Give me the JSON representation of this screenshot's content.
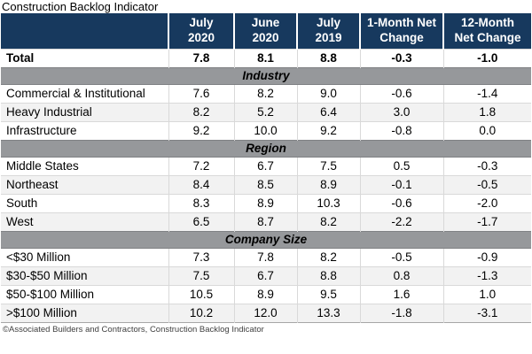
{
  "title": "Construction Backlog Indicator",
  "footer": "©Associated Builders and Contractors, Construction Backlog Indicator",
  "colors": {
    "header_bg": "#17395E",
    "header_text": "#FFFFFF",
    "section_band_bg": "#96989B",
    "alt_row_bg": "#F2F2F2",
    "bottom_border": "#A6A6A6"
  },
  "chart_data": {
    "type": "table",
    "title": "Construction Backlog Indicator",
    "columns": [
      "July\n2020",
      "June\n2020",
      "July\n2019",
      "1-Month Net\nChange",
      "12-Month\nNet Change"
    ],
    "total_row": {
      "label": "Total",
      "values": [
        7.8,
        8.1,
        8.8,
        -0.3,
        -1.0
      ]
    },
    "sections": [
      {
        "name": "Industry",
        "rows": [
          {
            "label": "Commercial & Institutional",
            "values": [
              7.6,
              8.2,
              9.0,
              -0.6,
              -1.4
            ]
          },
          {
            "label": "Heavy Industrial",
            "values": [
              8.2,
              5.2,
              6.4,
              3.0,
              1.8
            ]
          },
          {
            "label": "Infrastructure",
            "values": [
              9.2,
              10.0,
              9.2,
              -0.8,
              0.0
            ]
          }
        ]
      },
      {
        "name": "Region",
        "rows": [
          {
            "label": "Middle States",
            "values": [
              7.2,
              6.7,
              7.5,
              0.5,
              -0.3
            ]
          },
          {
            "label": "Northeast",
            "values": [
              8.4,
              8.5,
              8.9,
              -0.1,
              -0.5
            ]
          },
          {
            "label": "South",
            "values": [
              8.3,
              8.9,
              10.3,
              -0.6,
              -2.0
            ]
          },
          {
            "label": "West",
            "values": [
              6.5,
              8.7,
              8.2,
              -2.2,
              -1.7
            ]
          }
        ]
      },
      {
        "name": "Company Size",
        "rows": [
          {
            "label": "<$30 Million",
            "values": [
              7.3,
              7.8,
              8.2,
              -0.5,
              -0.9
            ]
          },
          {
            "label": "$30-$50 Million",
            "values": [
              7.5,
              6.7,
              8.8,
              0.8,
              -1.3
            ]
          },
          {
            "label": "$50-$100 Million",
            "values": [
              10.5,
              8.9,
              9.5,
              1.6,
              1.0
            ]
          },
          {
            "label": ">$100 Million",
            "values": [
              10.2,
              12.0,
              13.3,
              -1.8,
              -3.1
            ]
          }
        ]
      }
    ]
  }
}
